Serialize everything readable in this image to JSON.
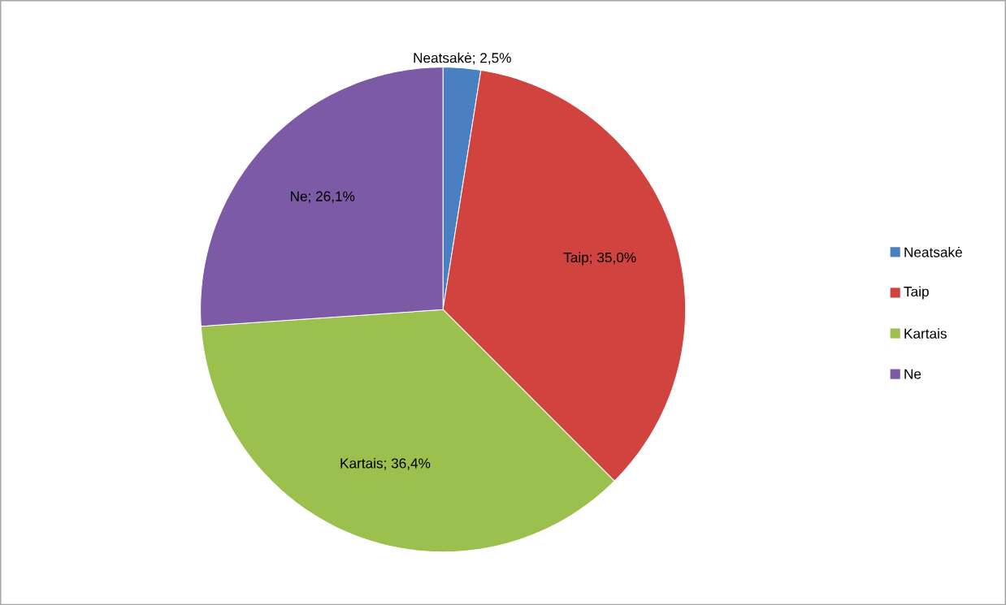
{
  "chart_data": {
    "type": "pie",
    "categories": [
      "Neatsakė",
      "Taip",
      "Kartais",
      "Ne"
    ],
    "values": [
      2.5,
      35.0,
      36.4,
      26.1
    ],
    "colors": [
      "#4a7fc1",
      "#d0433e",
      "#9cc04e",
      "#7d5aa6"
    ],
    "value_labels": [
      "Neatsakė; 2,5%",
      "Taip; 35,0%",
      "Kartais; 36,4%",
      "Ne; 26,1%"
    ],
    "legend": "right"
  }
}
